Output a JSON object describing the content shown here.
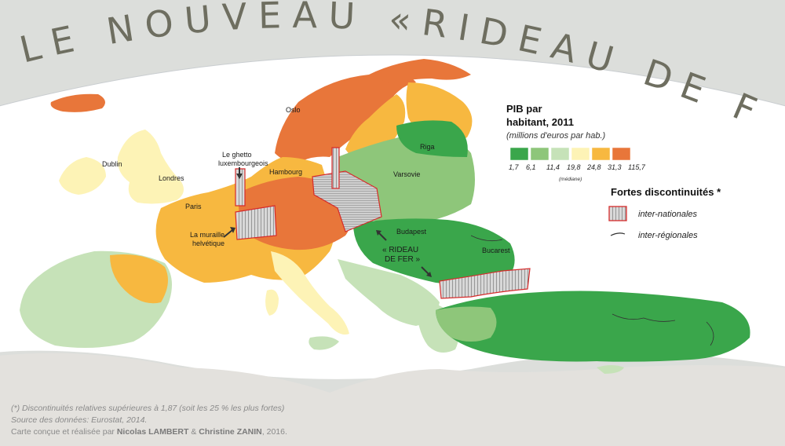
{
  "title": "LE NOUVEAU «RIDEAU DE FER»",
  "legend": {
    "title_line1": "PIB par",
    "title_line2": "habitant, 2011",
    "subtitle": "(millions d'euros par hab.)",
    "colors": [
      "#3aa64b",
      "#8ec67a",
      "#c6e2b8",
      "#fdf3b6",
      "#f7b840",
      "#e8763a"
    ],
    "values": [
      "1,7",
      "6,1",
      "11,4",
      "19,8",
      "24,8",
      "31,3",
      "115,7"
    ],
    "median_label": "(médiane)"
  },
  "discontinuities": {
    "title": "Fortes discontinuités *",
    "international": "inter-nationales",
    "regional": "inter-régionales"
  },
  "cities": {
    "oslo": "Oslo",
    "riga": "Riga",
    "dublin": "Dublin",
    "londres": "Londres",
    "hambourg": "Hambourg",
    "varsovie": "Varsovie",
    "paris": "Paris",
    "budapest": "Budapest",
    "bucarest": "Bucarest"
  },
  "annotations": {
    "ghetto_line1": "Le ghetto",
    "ghetto_line2": "luxembourgeois",
    "muraille_line1": "La muraille",
    "muraille_line2": "helvétique",
    "rideau_line1": "« RIDEAU",
    "rideau_line2": "DE FER »"
  },
  "footer": {
    "note": "(*) Discontinuités relatives supérieures à 1,87 (soit les 25 % les plus fortes)",
    "source": "Source des données: Eurostat, 2014.",
    "credit_prefix": "Carte conçue et réalisée par ",
    "author1": "Nicolas LAMBERT",
    "credit_and": " & ",
    "author2": "Christine ZANIN",
    "credit_suffix": ", 2016."
  }
}
